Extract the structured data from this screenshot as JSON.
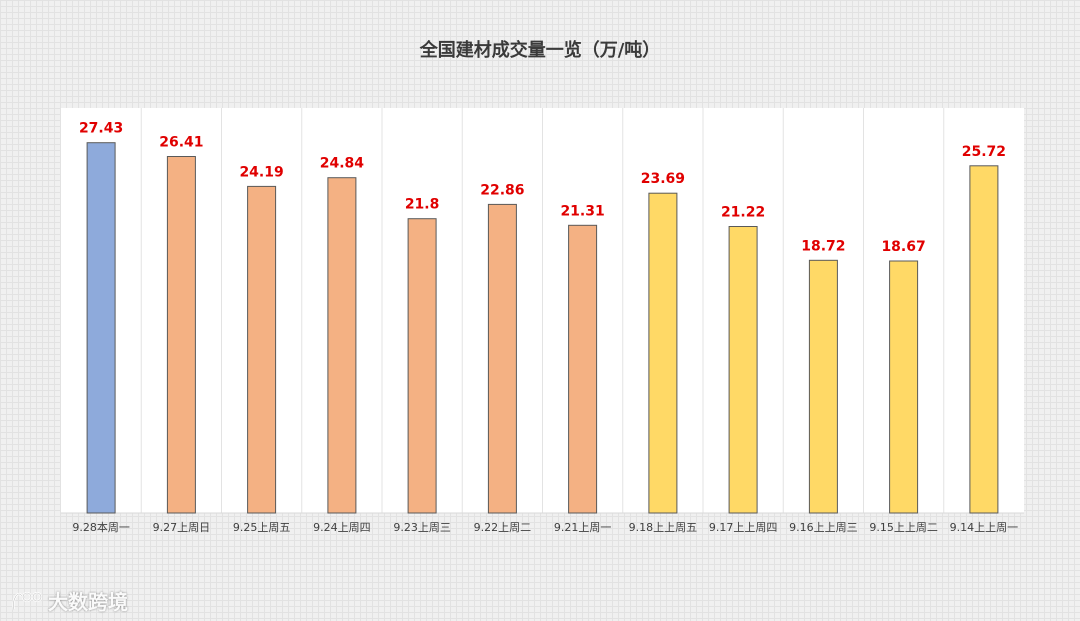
{
  "chart_data": {
    "type": "bar",
    "title": "全国建材成交量一览（万/吨）",
    "categories": [
      "9.28本周一",
      "9.27上周日",
      "9.25上周五",
      "9.24上周四",
      "9.23上周三",
      "9.22上周二",
      "9.21上周一",
      "9.18上上周五",
      "9.17上上周四",
      "9.16上上周三",
      "9.15上上周二",
      "9.14上上周一"
    ],
    "values": [
      27.43,
      26.41,
      24.19,
      24.84,
      21.8,
      22.86,
      21.31,
      23.69,
      21.22,
      18.72,
      18.67,
      25.72
    ],
    "value_labels": [
      "27.43",
      "26.41",
      "24.19",
      "24.84",
      "21.8",
      "22.86",
      "21.31",
      "23.69",
      "21.22",
      "18.72",
      "18.67",
      "25.72"
    ],
    "bar_colors": [
      "#8eaadb",
      "#f4b183",
      "#f4b183",
      "#f4b183",
      "#f4b183",
      "#f4b183",
      "#f4b183",
      "#ffd966",
      "#ffd966",
      "#ffd966",
      "#ffd966",
      "#ffd966"
    ],
    "bar_border_color": "#595959",
    "label_color": "#e00000",
    "ylim": [
      0,
      30
    ],
    "grid": true,
    "xlabel": "",
    "ylabel": ""
  },
  "watermark": {
    "text": "大数跨境"
  }
}
